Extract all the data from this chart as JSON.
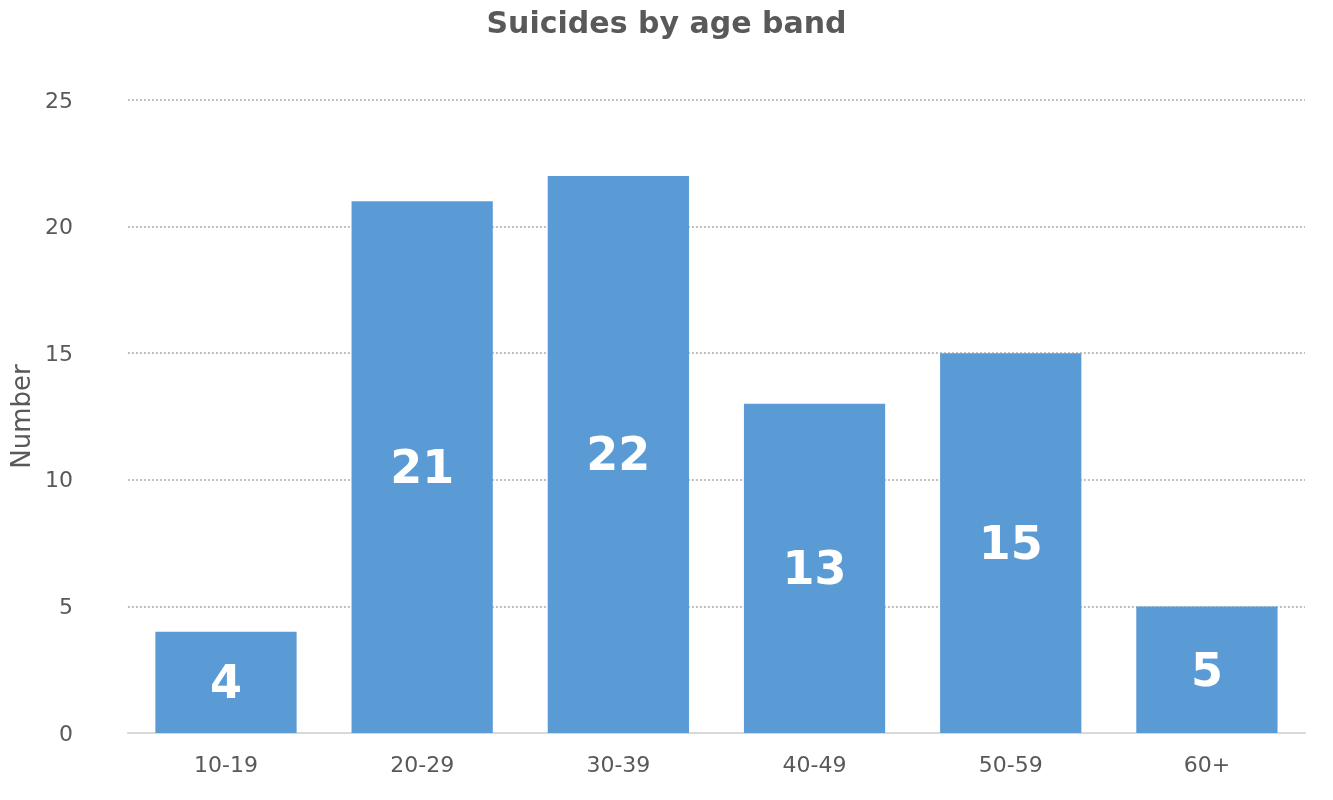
{
  "chart_data": {
    "type": "bar",
    "title": "Suicides by age band",
    "ylabel": "Number",
    "categories": [
      "10-19",
      "20-29",
      "30-39",
      "40-49",
      "50-59",
      "60+"
    ],
    "values": [
      4,
      21,
      22,
      13,
      15,
      5
    ],
    "color": "#5b9bd5",
    "ylim": [
      0,
      25
    ],
    "yticks": [
      0,
      5,
      10,
      15,
      20,
      25
    ],
    "grid": "y",
    "data_labels": true
  }
}
